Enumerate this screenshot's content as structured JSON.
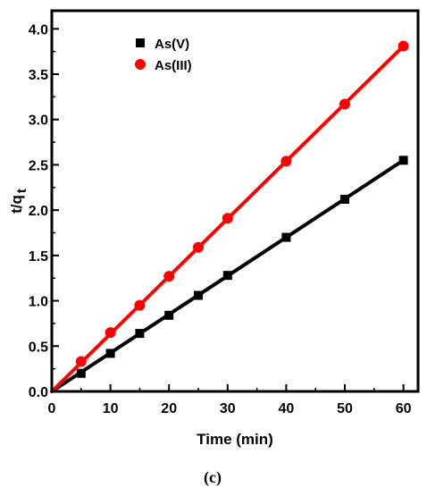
{
  "chart_data": {
    "type": "line",
    "title": "",
    "caption": "(c)",
    "xlabel": "Time (min)",
    "ylabel": "t/q",
    "ylabel_subscript": "t",
    "xlim": [
      0,
      62.5
    ],
    "ylim": [
      0,
      4.2
    ],
    "xticks": [
      0,
      10,
      20,
      30,
      40,
      50,
      60
    ],
    "xtick_labels": [
      "0",
      "10",
      "20",
      "30",
      "40",
      "50",
      "60"
    ],
    "yticks": [
      0,
      0.5,
      1.0,
      1.5,
      2.0,
      2.5,
      3.0,
      3.5,
      4.0
    ],
    "ytick_labels": [
      "0.0",
      "0.5",
      "1.0",
      "1.5",
      "2.0",
      "2.5",
      "3.0",
      "3.5",
      "4.0"
    ],
    "grid": false,
    "legend_position": "top-left",
    "series": [
      {
        "name": "As(V)",
        "color": "#000000",
        "marker": "square",
        "x": [
          5,
          10,
          15,
          20,
          25,
          30,
          40,
          50,
          60
        ],
        "y": [
          0.2,
          0.42,
          0.64,
          0.84,
          1.06,
          1.28,
          1.7,
          2.12,
          2.55
        ],
        "fit_line": {
          "x": [
            0,
            60
          ],
          "y": [
            0,
            2.55
          ]
        }
      },
      {
        "name": "As(III)",
        "color": "#ff0000",
        "marker": "circle",
        "x": [
          5,
          10,
          15,
          20,
          25,
          30,
          40,
          50,
          60
        ],
        "y": [
          0.33,
          0.65,
          0.95,
          1.27,
          1.59,
          1.91,
          2.54,
          3.17,
          3.81
        ],
        "fit_line": {
          "x": [
            0,
            60
          ],
          "y": [
            0,
            3.81
          ]
        }
      }
    ]
  }
}
